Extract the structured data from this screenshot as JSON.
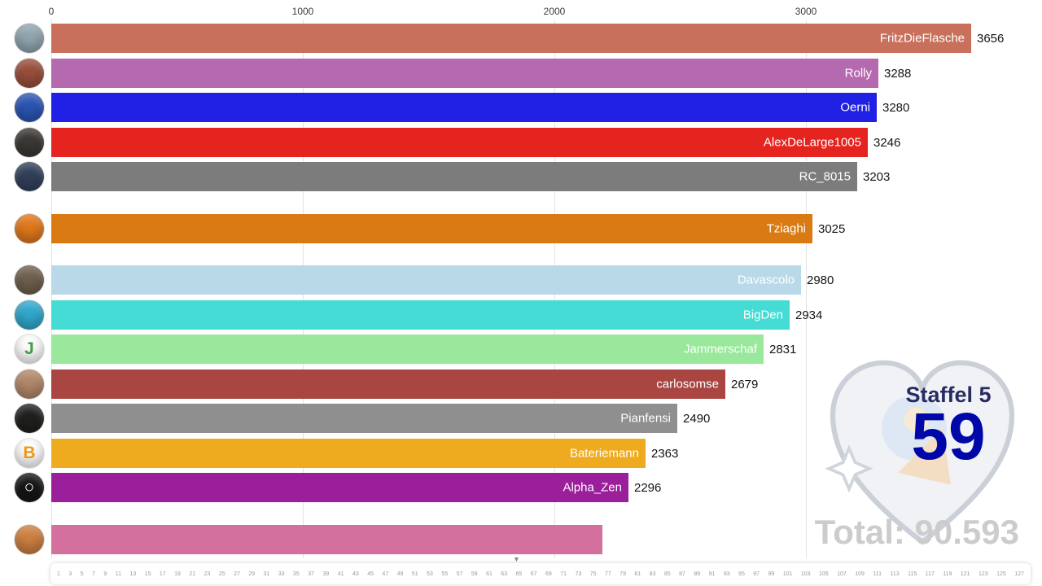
{
  "axis": {
    "ticks": [
      {
        "label": "0",
        "value": 0
      },
      {
        "label": "1000",
        "value": 1000
      },
      {
        "label": "2000",
        "value": 2000
      },
      {
        "label": "3000",
        "value": 3000
      }
    ]
  },
  "rows": [
    {
      "label": "FritzDieFlasche",
      "value": 3656,
      "value_display": "3656",
      "color": "#c9705c",
      "label_color": "#ffffff",
      "avatar": {
        "bg": "#93a7b2",
        "letter": "",
        "letter_color": "#ffffff"
      }
    },
    {
      "label": "Rolly",
      "value": 3288,
      "value_display": "3288",
      "color": "#b569ae",
      "label_color": "#ffffff",
      "avatar": {
        "bg": "#9a4f3d",
        "letter": "",
        "letter_color": "#ffffff"
      }
    },
    {
      "label": "Oerni",
      "value": 3280,
      "value_display": "3280",
      "color": "#2021e4",
      "label_color": "#ffffff",
      "avatar": {
        "bg": "#2b56b4",
        "letter": "",
        "letter_color": "#ffffff"
      }
    },
    {
      "label": "AlexDeLarge1005",
      "value": 3246,
      "value_display": "3246",
      "color": "#e52420",
      "label_color": "#ffffff",
      "avatar": {
        "bg": "#3b3835",
        "letter": "",
        "letter_color": "#ffffff"
      }
    },
    {
      "label": "RC_8015",
      "value": 3203,
      "value_display": "3203",
      "color": "#7c7c7c",
      "label_color": "#ffffff",
      "avatar": {
        "bg": "#31405a",
        "letter": "",
        "letter_color": "#ffffff"
      }
    },
    {
      "label": "Tziaghi",
      "value": 3025,
      "value_display": "3025",
      "color": "#d97a12",
      "label_color": "#ffffff",
      "avatar": {
        "bg": "#e2791b",
        "letter": "",
        "letter_color": "#111111"
      }
    },
    {
      "label": "Davascolo",
      "value": 2980,
      "value_display": "2980",
      "color": "#b9d9e8",
      "label_color": "#ffffff",
      "avatar": {
        "bg": "#70604f",
        "letter": "",
        "letter_color": "#ffffff"
      }
    },
    {
      "label": "BigDen",
      "value": 2934,
      "value_display": "2934",
      "color": "#44dcd4",
      "label_color": "#ffffff",
      "avatar": {
        "bg": "#31a9cf",
        "letter": "",
        "letter_color": "#ffffff"
      }
    },
    {
      "label": "Jammerschaf",
      "value": 2831,
      "value_display": "2831",
      "color": "#99e89b",
      "label_color": "#ffffff",
      "avatar": {
        "bg": "#ffffff",
        "letter": "J",
        "letter_color": "#3f9e44"
      }
    },
    {
      "label": "carlosomse",
      "value": 2679,
      "value_display": "2679",
      "color": "#a94642",
      "label_color": "#ffffff",
      "avatar": {
        "bg": "#b3896a",
        "letter": "",
        "letter_color": "#ffffff"
      }
    },
    {
      "label": "Pianfensi",
      "value": 2490,
      "value_display": "2490",
      "color": "#8f8f8f",
      "label_color": "#ffffff",
      "avatar": {
        "bg": "#20201e",
        "letter": "",
        "letter_color": "#ffffff"
      }
    },
    {
      "label": "Bateriemann",
      "value": 2363,
      "value_display": "2363",
      "color": "#eeab20",
      "label_color": "#ffffff",
      "avatar": {
        "bg": "#ffffff",
        "letter": "B",
        "letter_color": "#ef9718"
      }
    },
    {
      "label": "Alpha_Zen",
      "value": 2296,
      "value_display": "2296",
      "color": "#9b1e9b",
      "label_color": "#ffffff",
      "avatar": {
        "bg": "#161616",
        "letter": "○",
        "letter_color": "#ffffff"
      }
    },
    {
      "label": "",
      "value": 2190,
      "value_display": "",
      "color": "#d4709e",
      "label_color": "#ffffff",
      "avatar": {
        "bg": "#cf8040",
        "letter": "",
        "letter_color": "#ffffff"
      }
    }
  ],
  "overlay": {
    "season_label": "Staffel 5",
    "episode_number": "59",
    "total_label": "Total: 90.593"
  },
  "timeline": {
    "ticks": [
      "1",
      "3",
      "5",
      "7",
      "9",
      "11",
      "13",
      "15",
      "17",
      "19",
      "21",
      "23",
      "25",
      "27",
      "29",
      "31",
      "33",
      "35",
      "37",
      "39",
      "41",
      "43",
      "45",
      "47",
      "49",
      "51",
      "53",
      "55",
      "57",
      "59",
      "61",
      "63",
      "65",
      "67",
      "69",
      "71",
      "73",
      "75",
      "77",
      "79",
      "81",
      "83",
      "85",
      "87",
      "89",
      "91",
      "93",
      "95",
      "97",
      "99",
      "101",
      "103",
      "105",
      "107",
      "109",
      "111",
      "113",
      "115",
      "117",
      "119",
      "121",
      "123",
      "125",
      "127"
    ],
    "marker_icon": "▼"
  },
  "colors": {
    "episode": "#0007a8",
    "season": "#272c62",
    "total": "#cccccc",
    "grid": "#e3e3e3",
    "axis_text": "#3c3c3c"
  }
}
